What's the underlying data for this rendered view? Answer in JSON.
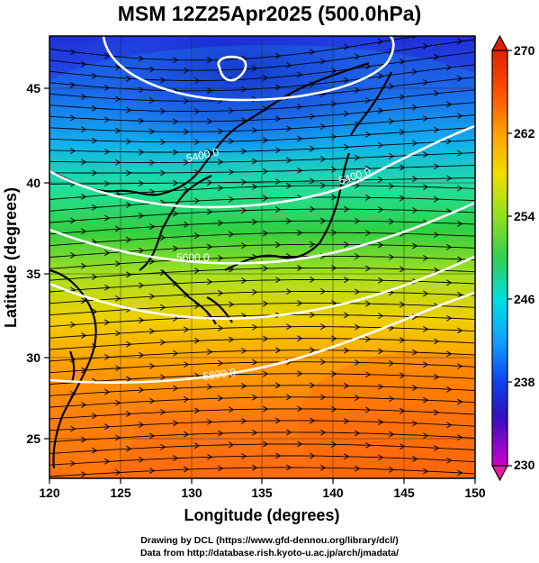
{
  "title": "MSM 12Z25Apr2025 (500.0hPa)",
  "x_axis": {
    "label": "Longitude (degrees)",
    "ticks": [
      "120",
      "125",
      "130",
      "135",
      "140",
      "145",
      "150"
    ],
    "range": [
      120,
      150
    ]
  },
  "y_axis": {
    "label": "Latitude  (degrees)",
    "ticks": [
      "25",
      "30",
      "35",
      "40",
      "45"
    ],
    "range": [
      22.4,
      47.6
    ]
  },
  "colorbar": {
    "ticks": [
      "270",
      "262",
      "254",
      "246",
      "238",
      "230"
    ],
    "range": [
      230,
      270
    ],
    "colors": [
      "#e000e0",
      "#3000c0",
      "#1060ff",
      "#00c0ff",
      "#30e090",
      "#30d030",
      "#c0e000",
      "#ffc000",
      "#ff6000",
      "#e02000"
    ]
  },
  "contours": [
    {
      "label": "5400.0"
    },
    {
      "label": "5400.0"
    },
    {
      "label": "5600.0"
    },
    {
      "label": "5800.0"
    }
  ],
  "credits": {
    "line1": "Drawing by DCL (https://www.gfd-dennou.org/library/dcl/)",
    "line2": "Data from http://database.rish.kyoto-u.ac.jp/arch/jmadata/"
  }
}
